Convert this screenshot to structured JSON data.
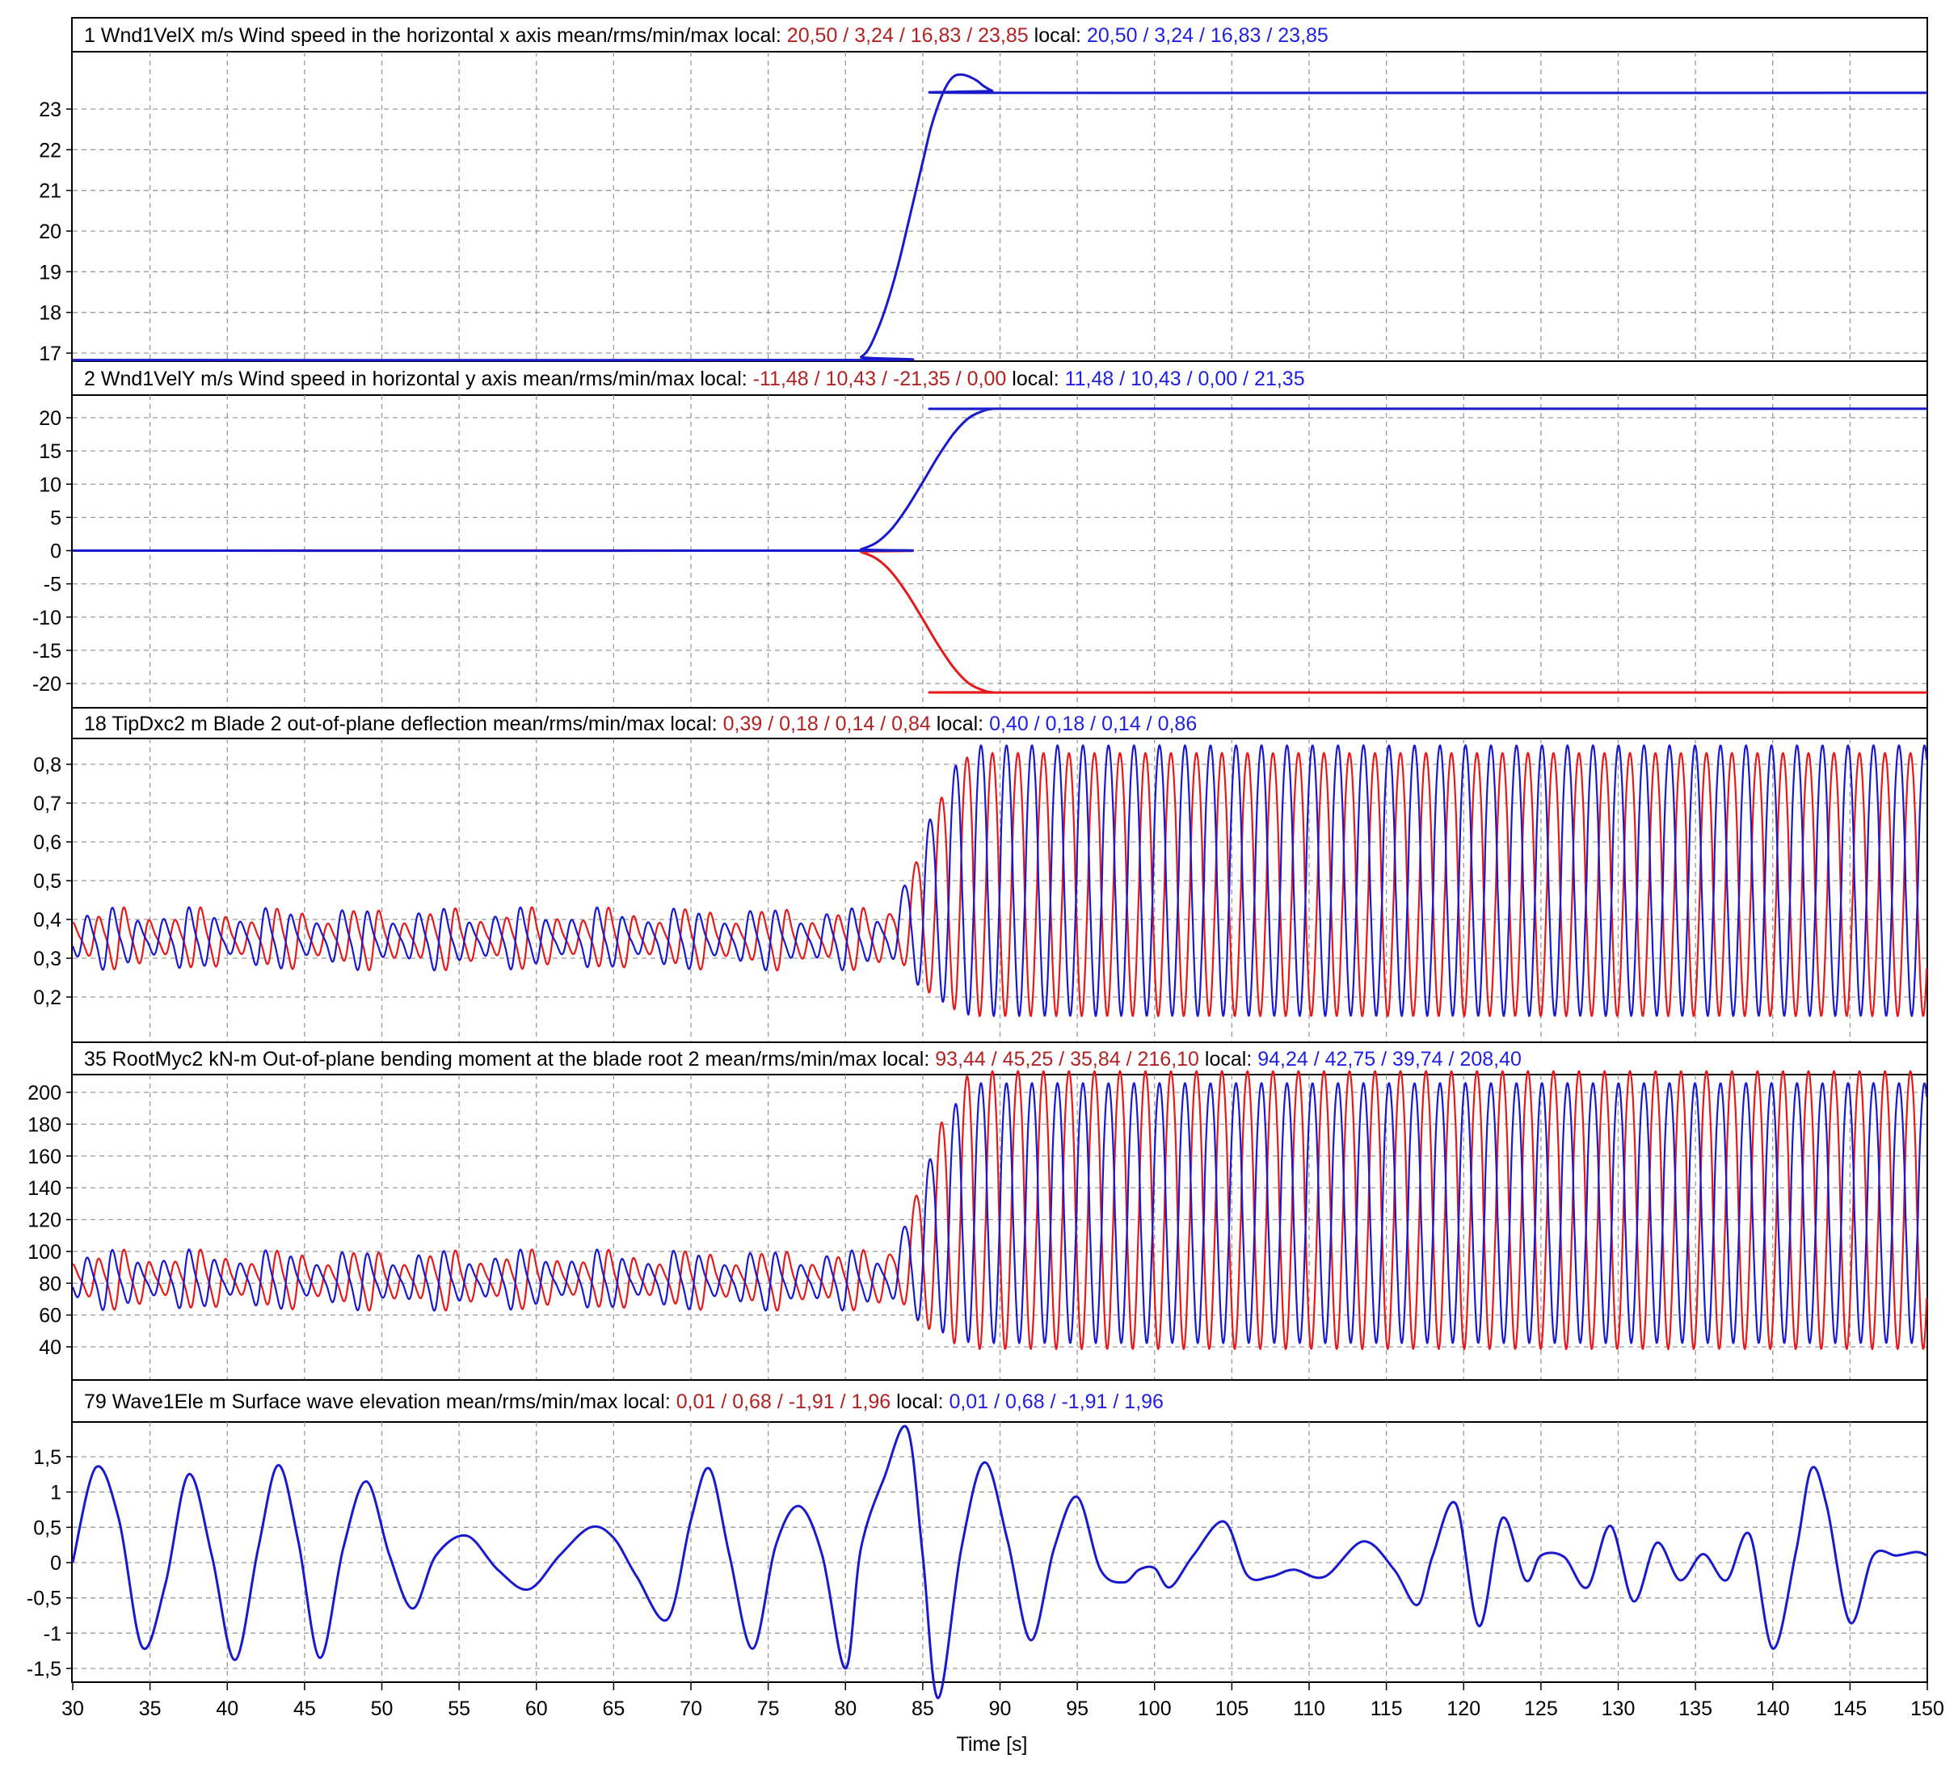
{
  "x_axis": {
    "label": "Time [s]",
    "min": 30,
    "max": 150,
    "tick_step": 5,
    "grid": true
  },
  "colors": {
    "red": "#e41a1c",
    "blue": "#1a1acd",
    "header_red": "#b22222",
    "header_blue": "#1f1fe0",
    "grid": "#9a9a9a"
  },
  "panels": [
    {
      "id": "wnd1velx",
      "header": {
        "title": "1 Wnd1VelX m/s   Wind speed in the horizontal x axis   mean/rms/min/max",
        "local1_label": "local:",
        "local1_values": [
          "20,50 /",
          "3,24 /",
          "16,83 /",
          "23,85"
        ],
        "local2_label": "local:",
        "local2_values": [
          "20,50 /",
          "3,24 /",
          "16,83 /",
          "23,85"
        ]
      },
      "y_ticks": [
        "23",
        "22",
        "21",
        "20",
        "19",
        "18",
        "17"
      ]
    },
    {
      "id": "wnd1vely",
      "header": {
        "title": "2 Wnd1VelY m/s   Wind speed in horizontal y axis   mean/rms/min/max",
        "local1_label": "local:",
        "local1_values": [
          "-11,48 /",
          "10,43 /",
          "-21,35 /",
          "0,00"
        ],
        "local2_label": "local:",
        "local2_values": [
          "11,48 /",
          "10,43 /",
          "0,00 /",
          "21,35"
        ]
      },
      "y_ticks": [
        "20",
        "15",
        "10",
        "5",
        "0",
        "-5",
        "-10",
        "-15",
        "-20"
      ]
    },
    {
      "id": "tipdxc2",
      "header": {
        "title": "18 TipDxc2  m   Blade 2 out-of-plane deflection   mean/rms/min/max",
        "local1_label": "local:",
        "local1_values": [
          "0,39 /",
          "0,18 /",
          "0,14 /",
          "0,84"
        ],
        "local2_label": "local:",
        "local2_values": [
          "0,40 /",
          "0,18 /",
          "0,14 /",
          "0,86"
        ]
      },
      "y_ticks": [
        "0,8",
        "0,7",
        "0,6",
        "0,5",
        "0,4",
        "0,3",
        "0,2"
      ]
    },
    {
      "id": "rootmyc2",
      "header": {
        "title": "35 RootMyc2 kN-m   Out-of-plane bending moment at the blade root 2   mean/rms/min/max",
        "local1_label": "local:",
        "local1_values": [
          "93,44 /",
          "45,25 /",
          "35,84 /",
          "216,10"
        ],
        "local2_label": "local:",
        "local2_values": [
          "94,24 /",
          "42,75 /",
          "39,74 /",
          "208,40"
        ]
      },
      "y_ticks": [
        "200",
        "180",
        "160",
        "140",
        "120",
        "100",
        "80",
        "60",
        "40"
      ]
    },
    {
      "id": "wave1ele",
      "header": {
        "title": "79 Wave1Ele m   Surface wave elevation   mean/rms/min/max",
        "local1_label": "local:",
        "local1_values": [
          "0,01 /",
          "0,68 /",
          "-1,91 /",
          "1,96"
        ],
        "local2_label": "local:",
        "local2_values": [
          "0,01 /",
          "0,68 /",
          "-1,91 /",
          "1,96"
        ]
      },
      "y_ticks": [
        "1,5",
        "1",
        "0,5",
        "0",
        "-0,5",
        "-1",
        "-1,5"
      ]
    }
  ],
  "chart_data": [
    {
      "type": "line",
      "title": "1 Wnd1VelX m/s   Wind speed in the horizontal x axis",
      "ylim": [
        16.8,
        23.95
      ],
      "series": [
        {
          "color": "#1a1acd",
          "x": [
            30,
            80.5,
            81,
            81.5,
            82,
            82.5,
            83,
            83.5,
            84,
            84.5,
            85,
            85.5,
            86,
            86.5,
            87,
            87.5,
            88,
            88.5,
            89,
            89.5,
            90,
            150
          ],
          "values": [
            16.83,
            16.83,
            16.9,
            17.1,
            17.5,
            18.0,
            18.6,
            19.3,
            20.1,
            20.9,
            21.7,
            22.5,
            23.1,
            23.55,
            23.8,
            23.85,
            23.8,
            23.7,
            23.55,
            23.45,
            23.4,
            23.4
          ]
        }
      ]
    },
    {
      "type": "line",
      "title": "2 Wnd1VelY m/s   Wind speed in horizontal y axis",
      "ylim": [
        -22.5,
        22.5
      ],
      "series": [
        {
          "color": "#e41a1c",
          "x": [
            30,
            80.5,
            81,
            82,
            83,
            84,
            85,
            86,
            87,
            88,
            89,
            89.5,
            90,
            150
          ],
          "values": [
            0,
            0,
            -0.2,
            -1.2,
            -3.3,
            -6.5,
            -10.3,
            -14.2,
            -17.6,
            -20.0,
            -21.1,
            -21.3,
            -21.35,
            -21.35
          ]
        },
        {
          "color": "#1a1acd",
          "x": [
            30,
            80.5,
            81,
            82,
            83,
            84,
            85,
            86,
            87,
            88,
            89,
            89.5,
            90,
            150
          ],
          "values": [
            0,
            0,
            0.2,
            1.2,
            3.3,
            6.5,
            10.3,
            14.2,
            17.6,
            20.0,
            21.1,
            21.3,
            21.35,
            21.35
          ]
        }
      ]
    },
    {
      "type": "line",
      "title": "18 TipDxc2  m   Blade 2 out-of-plane deflection",
      "ylim": [
        0.13,
        0.86
      ],
      "x_range": [
        30,
        150
      ],
      "oscillation": {
        "period_s": 1.65,
        "before_t": 82,
        "transition_end_t": 88.5,
        "before": {
          "mean": 0.35,
          "amplitude": 0.055
        },
        "after": {
          "min": 0.15,
          "max": 0.84
        },
        "series": [
          {
            "color": "#e41a1c",
            "phase": 0.0,
            "after_max": 0.84,
            "after_min": 0.14
          },
          {
            "color": "#1a1acd",
            "phase": 0.45,
            "after_max": 0.86,
            "after_min": 0.14
          }
        ]
      }
    },
    {
      "type": "line",
      "title": "35 RootMyc2 kN-m   Out-of-plane bending moment at the blade root 2",
      "ylim": [
        30,
        212
      ],
      "x_range": [
        30,
        150
      ],
      "oscillation": {
        "period_s": 1.65,
        "before_t": 82,
        "transition_end_t": 88.5,
        "before": {
          "mean": 82,
          "amplitude": 13
        },
        "after": {
          "min": 38,
          "max": 210
        },
        "series": [
          {
            "color": "#e41a1c",
            "phase": 0.0,
            "after_max": 216.1,
            "after_min": 35.84
          },
          {
            "color": "#1a1acd",
            "phase": 0.45,
            "after_max": 208.4,
            "after_min": 39.74
          }
        ]
      }
    },
    {
      "type": "line",
      "title": "79 Wave1Ele m   Surface wave elevation",
      "ylim": [
        -1.85,
        1.75
      ],
      "series": [
        {
          "color": "#1a1acd",
          "x": [
            30,
            31.5,
            33,
            34.5,
            36,
            37.5,
            39,
            40.5,
            42,
            43.3,
            44.6,
            46,
            47.5,
            49,
            50.5,
            52,
            53.5,
            55.5,
            57.5,
            59.5,
            61.5,
            63.5,
            65,
            66.5,
            68.5,
            70,
            71.2,
            72.5,
            74,
            75.5,
            77,
            78.5,
            80,
            81,
            82.5,
            84,
            85,
            86,
            87.5,
            89,
            90.5,
            92,
            93.5,
            95,
            96.5,
            98,
            99,
            100,
            101,
            102.5,
            104.5,
            106,
            107.5,
            109,
            111,
            113.5,
            115.5,
            117,
            118,
            119.5,
            121,
            122.5,
            124,
            125,
            126.5,
            128,
            129.5,
            131,
            132.5,
            134,
            135.5,
            137,
            138.5,
            140,
            141.5,
            142.5,
            143.5,
            145,
            146.5,
            148,
            149.3,
            150
          ],
          "values": [
            0,
            1.35,
            0.6,
            -1.2,
            -0.3,
            1.25,
            0.1,
            -1.38,
            0.2,
            1.38,
            0.3,
            -1.35,
            0.2,
            1.15,
            0.1,
            -0.65,
            0.1,
            0.38,
            -0.1,
            -0.38,
            0.1,
            0.5,
            0.35,
            -0.2,
            -0.8,
            0.6,
            1.33,
            0.1,
            -1.22,
            0.25,
            0.8,
            0.1,
            -1.5,
            0.2,
            1.2,
            1.9,
            0.1,
            -1.92,
            0.2,
            1.42,
            0.3,
            -1.1,
            0.2,
            0.93,
            -0.1,
            -0.28,
            -0.1,
            -0.08,
            -0.35,
            0.1,
            0.58,
            -0.18,
            -0.2,
            -0.1,
            -0.2,
            0.3,
            -0.1,
            -0.6,
            0.1,
            0.83,
            -0.9,
            0.63,
            -0.25,
            0.1,
            0.08,
            -0.35,
            0.52,
            -0.55,
            0.28,
            -0.25,
            0.12,
            -0.25,
            0.4,
            -1.22,
            0.15,
            1.33,
            0.8,
            -0.85,
            0.1,
            0.1,
            0.15,
            0.1
          ]
        }
      ]
    }
  ]
}
